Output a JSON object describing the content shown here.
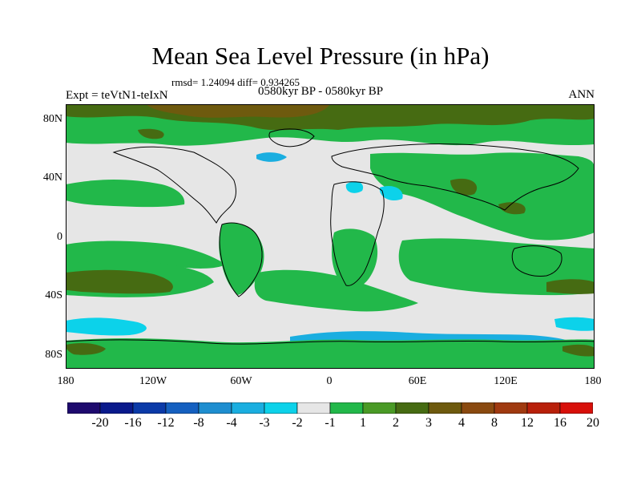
{
  "figure": {
    "title": "Mean Sea Level Pressure (in hPa)",
    "stats": "rmsd= 1.24094  diff= 0.934265",
    "period": "0580kyr BP - 0580kyr BP",
    "experiment": "Expt = teVtN1-teIxN",
    "season": "ANN"
  },
  "axes": {
    "lat_labels": [
      "80N",
      "40N",
      "0",
      "40S",
      "80S"
    ],
    "lon_labels": [
      "180",
      "120W",
      "60W",
      "0",
      "60E",
      "120E",
      "180"
    ]
  },
  "colorbar": {
    "colors": [
      "#1e0a6e",
      "#0a1a8c",
      "#0b3aa8",
      "#1560c0",
      "#1e8ed0",
      "#1aaee0",
      "#0cd2ea",
      "#e6e6e6",
      "#22b84a",
      "#4a9a26",
      "#466b12",
      "#6e5a0e",
      "#8a4a10",
      "#a03a10",
      "#b8200a",
      "#d8100a"
    ],
    "labels": [
      "-20",
      "-16",
      "-12",
      "-8",
      "-4",
      "-3",
      "-2",
      "-1",
      "1",
      "2",
      "3",
      "4",
      "8",
      "12",
      "16",
      "20"
    ]
  },
  "map_colors": {
    "neutral": "#e6e6e6",
    "green": "#22b84a",
    "olive": "#466b12",
    "brown": "#6e5a0e",
    "cyan": "#0cd2ea",
    "blue": "#1aaee0"
  }
}
